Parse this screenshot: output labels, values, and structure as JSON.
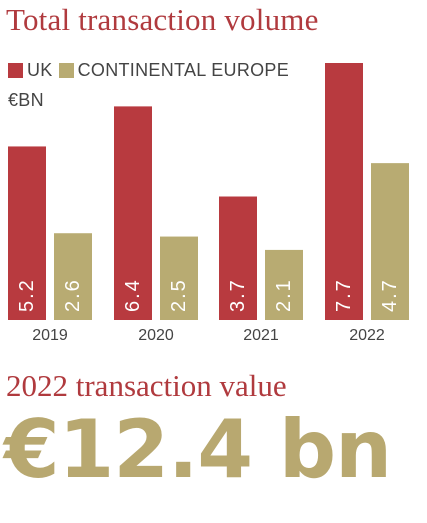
{
  "chart_data": {
    "type": "bar",
    "title": "Total transaction volume",
    "unit": "€BN",
    "categories": [
      "2019",
      "2020",
      "2021",
      "2022"
    ],
    "series": [
      {
        "name": "UK",
        "color": "#b83a3f",
        "values": [
          5.2,
          6.4,
          3.7,
          7.7
        ],
        "labels": [
          "5.2",
          "6.4",
          "3.7",
          "7.7"
        ]
      },
      {
        "name": "CONTINENTAL EUROPE",
        "color": "#b8ab72",
        "values": [
          2.6,
          2.5,
          2.1,
          4.7
        ],
        "labels": [
          "2.6",
          "2.5",
          "2.1",
          "4.7"
        ]
      }
    ],
    "ylim": [
      0,
      7.7
    ],
    "grid": false,
    "legend": "top-left"
  },
  "summary": {
    "title": "2022 transaction value",
    "value": "€12.4 bn"
  },
  "colors": {
    "title": "#b03a3e",
    "highlight": "#b8a870"
  }
}
